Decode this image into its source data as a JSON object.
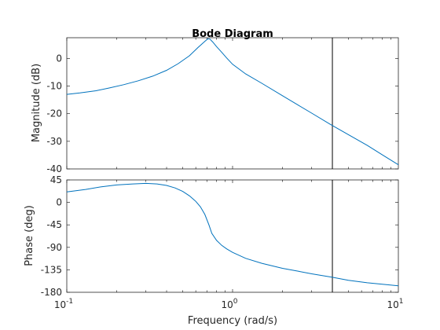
{
  "chart_data": [
    {
      "type": "line",
      "panel": "magnitude",
      "title": "Bode Diagram",
      "xlabel": "",
      "ylabel": "Magnitude (dB)",
      "xscale": "log",
      "xlim": [
        0.1,
        10
      ],
      "ylim": [
        -40,
        7.5
      ],
      "yticks": [
        0,
        -10,
        -20,
        -30,
        -40
      ],
      "yticklabels": [
        "0",
        "-10",
        "-20",
        "-30",
        "-40"
      ],
      "grid": false,
      "series": [
        {
          "x": [
            0.1,
            0.12,
            0.15,
            0.18,
            0.22,
            0.27,
            0.33,
            0.4,
            0.47,
            0.55,
            0.62,
            0.68,
            0.71,
            0.73,
            0.76,
            0.8,
            0.86,
            0.92,
            1.0,
            1.2,
            1.5,
            2.0,
            2.5,
            3.0,
            3.9,
            5.0,
            6.5,
            8.0,
            10.0
          ],
          "y": [
            -13.0,
            -12.5,
            -11.7,
            -10.7,
            -9.5,
            -8.1,
            -6.4,
            -4.3,
            -1.9,
            1.0,
            4.0,
            6.2,
            7.1,
            7.0,
            5.9,
            4.3,
            2.2,
            0.2,
            -2.1,
            -5.6,
            -9.0,
            -13.5,
            -17.0,
            -19.8,
            -23.9,
            -27.6,
            -31.5,
            -34.9,
            -38.5
          ]
        }
      ],
      "markers": [
        {
          "x": 4.0
        }
      ]
    },
    {
      "type": "line",
      "panel": "phase",
      "title": "",
      "xlabel": "Frequency  (rad/s)",
      "ylabel": "Phase (deg)",
      "xscale": "log",
      "xlim": [
        0.1,
        10
      ],
      "ylim": [
        -180,
        45
      ],
      "xticks": [
        0.1,
        1,
        10
      ],
      "xticklabels": [
        {
          "base": "10",
          "exp": "-1"
        },
        {
          "base": "10",
          "exp": "0"
        },
        {
          "base": "10",
          "exp": "1"
        }
      ],
      "yticks": [
        45,
        0,
        -45,
        -90,
        -135,
        -180
      ],
      "yticklabels": [
        "45",
        "0",
        "-45",
        "-90",
        "-135",
        "-180"
      ],
      "grid": false,
      "series": [
        {
          "x": [
            0.1,
            0.13,
            0.16,
            0.2,
            0.25,
            0.3,
            0.35,
            0.4,
            0.45,
            0.5,
            0.55,
            0.6,
            0.64,
            0.68,
            0.72,
            0.75,
            0.8,
            0.86,
            0.92,
            1.0,
            1.2,
            1.5,
            2.0,
            2.5,
            3.0,
            4.0,
            5.0,
            6.5,
            8.0,
            10.0
          ],
          "y": [
            21,
            26,
            31,
            35,
            37,
            38,
            37,
            34,
            29,
            22,
            13,
            2,
            -9,
            -24,
            -45,
            -62,
            -76,
            -86,
            -93,
            -100,
            -112,
            -122,
            -132,
            -138,
            -143,
            -150,
            -156,
            -161,
            -164,
            -167
          ]
        }
      ],
      "markers": [
        {
          "x": 4.0
        }
      ]
    }
  ],
  "colors": {
    "series": "#0072bd",
    "axes": "#262626",
    "marker": "#000000",
    "background": "#ffffff"
  }
}
